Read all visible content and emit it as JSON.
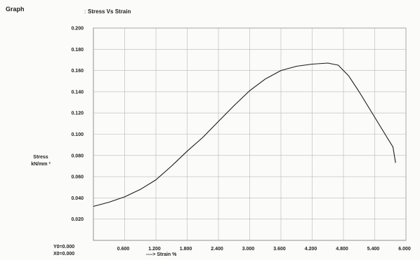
{
  "header": {
    "graph_label": "Graph",
    "colon": ":"
  },
  "origin": {
    "y0": "Y0=0.000",
    "x0": "X0=0.000"
  },
  "chart_data": {
    "type": "line",
    "title": "Stress Vs Strain",
    "xlabel": "----> Strain  %",
    "ylabel": [
      "Stress",
      "kN/mm ²"
    ],
    "xlim": [
      0,
      6.0
    ],
    "ylim": [
      0,
      0.2
    ],
    "xticks": [
      "0.600",
      "1.200",
      "1.800",
      "2.400",
      "3.000",
      "3.600",
      "4.200",
      "4.800",
      "5.400",
      "6.000"
    ],
    "yticks": [
      "0.020",
      "0.040",
      "0.060",
      "0.080",
      "0.100",
      "0.120",
      "0.140",
      "0.160",
      "0.180",
      "0.200"
    ],
    "grid": true,
    "line_color": "#1a1a1a",
    "series": [
      {
        "x": [
          0.0,
          0.3,
          0.6,
          0.9,
          1.2,
          1.5,
          1.8,
          2.1,
          2.4,
          2.7,
          3.0,
          3.3,
          3.6,
          3.9,
          4.2,
          4.5,
          4.7,
          4.9,
          5.1,
          5.3,
          5.5,
          5.65,
          5.75,
          5.8
        ],
        "y": [
          0.032,
          0.036,
          0.041,
          0.048,
          0.057,
          0.07,
          0.084,
          0.097,
          0.112,
          0.127,
          0.141,
          0.152,
          0.16,
          0.164,
          0.166,
          0.167,
          0.165,
          0.155,
          0.14,
          0.124,
          0.108,
          0.096,
          0.088,
          0.073
        ]
      }
    ]
  }
}
